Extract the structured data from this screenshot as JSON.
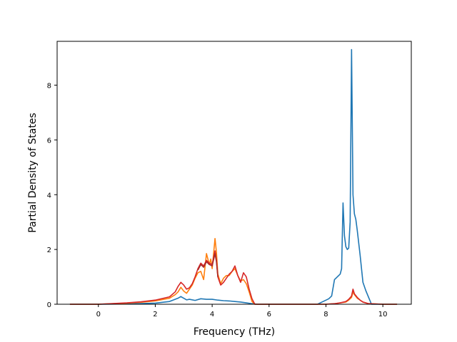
{
  "chart_data": {
    "type": "line",
    "title": "",
    "xlabel": "Frequency (THz)",
    "ylabel": "Partial Density of States",
    "xlim": [
      -1.45,
      11.0
    ],
    "ylim": [
      0,
      9.6
    ],
    "xticks": [
      0,
      2,
      4,
      6,
      8,
      10
    ],
    "yticks": [
      0,
      2,
      4,
      6,
      8
    ],
    "grid": false,
    "legend": "none",
    "series": [
      {
        "color": "#1f77b4",
        "x": [
          -1.0,
          0.0,
          1.0,
          2.0,
          2.5,
          2.8,
          2.9,
          3.0,
          3.1,
          3.2,
          3.4,
          3.6,
          3.8,
          4.0,
          4.2,
          4.4,
          4.6,
          4.8,
          5.0,
          5.2,
          5.4,
          5.6,
          6.0,
          7.0,
          7.7,
          7.9,
          8.1,
          8.2,
          8.3,
          8.4,
          8.5,
          8.55,
          8.6,
          8.65,
          8.7,
          8.75,
          8.8,
          8.85,
          8.9,
          8.95,
          9.0,
          9.05,
          9.1,
          9.2,
          9.3,
          9.4,
          9.5,
          9.6,
          10.0,
          10.5
        ],
        "y": [
          0.0,
          0.0,
          0.01,
          0.04,
          0.1,
          0.22,
          0.28,
          0.22,
          0.16,
          0.18,
          0.14,
          0.2,
          0.18,
          0.18,
          0.15,
          0.13,
          0.12,
          0.1,
          0.08,
          0.05,
          0.02,
          0.0,
          0.0,
          0.0,
          0.0,
          0.1,
          0.2,
          0.3,
          0.9,
          1.0,
          1.1,
          1.3,
          3.7,
          2.5,
          2.1,
          2.0,
          2.05,
          3.0,
          9.3,
          4.0,
          3.3,
          3.1,
          2.7,
          1.8,
          0.8,
          0.5,
          0.25,
          0.0,
          0.0,
          0.0
        ]
      },
      {
        "color": "#ff7f0e",
        "x": [
          -1.0,
          0.0,
          1.0,
          1.5,
          2.0,
          2.5,
          2.7,
          2.8,
          2.9,
          3.0,
          3.1,
          3.2,
          3.3,
          3.4,
          3.5,
          3.6,
          3.7,
          3.8,
          3.9,
          3.95,
          4.0,
          4.1,
          4.15,
          4.2,
          4.3,
          4.4,
          4.5,
          4.6,
          4.7,
          4.8,
          4.9,
          5.0,
          5.1,
          5.2,
          5.3,
          5.4,
          5.5,
          6.0,
          7.0,
          8.0,
          8.3,
          8.5,
          8.7,
          8.8,
          8.9,
          8.95,
          9.0,
          9.1,
          9.2,
          9.3,
          9.5,
          10.0,
          10.5
        ],
        "y": [
          0.0,
          0.0,
          0.04,
          0.07,
          0.12,
          0.22,
          0.35,
          0.45,
          0.62,
          0.48,
          0.4,
          0.55,
          0.7,
          0.95,
          1.15,
          1.2,
          0.9,
          1.85,
          1.45,
          1.65,
          1.3,
          2.4,
          1.9,
          1.1,
          0.75,
          0.95,
          1.05,
          1.05,
          1.2,
          1.3,
          1.05,
          0.85,
          0.9,
          0.75,
          0.45,
          0.1,
          0.0,
          0.0,
          0.0,
          0.0,
          0.02,
          0.05,
          0.08,
          0.15,
          0.25,
          0.45,
          0.35,
          0.22,
          0.15,
          0.08,
          0.02,
          0.0,
          0.0
        ]
      },
      {
        "color": "#d62728",
        "x": [
          -1.0,
          0.0,
          1.0,
          1.5,
          2.0,
          2.5,
          2.7,
          2.8,
          2.9,
          3.0,
          3.1,
          3.2,
          3.3,
          3.4,
          3.5,
          3.6,
          3.7,
          3.8,
          3.9,
          4.0,
          4.1,
          4.15,
          4.2,
          4.3,
          4.4,
          4.5,
          4.6,
          4.7,
          4.8,
          4.9,
          5.0,
          5.1,
          5.2,
          5.3,
          5.4,
          5.5,
          6.0,
          7.0,
          8.0,
          8.3,
          8.5,
          8.7,
          8.8,
          8.9,
          8.95,
          9.0,
          9.1,
          9.2,
          9.3,
          9.5,
          10.0,
          10.5
        ],
        "y": [
          0.0,
          0.0,
          0.05,
          0.09,
          0.15,
          0.27,
          0.45,
          0.65,
          0.8,
          0.7,
          0.55,
          0.6,
          0.75,
          1.0,
          1.3,
          1.5,
          1.4,
          1.6,
          1.5,
          1.45,
          1.95,
          1.6,
          1.0,
          0.7,
          0.8,
          0.95,
          1.1,
          1.2,
          1.4,
          1.05,
          0.8,
          1.15,
          1.0,
          0.55,
          0.2,
          0.0,
          0.0,
          0.0,
          0.0,
          0.02,
          0.05,
          0.1,
          0.18,
          0.3,
          0.55,
          0.38,
          0.25,
          0.15,
          0.08,
          0.02,
          0.0,
          0.0
        ]
      },
      {
        "color": "#aa2a2a",
        "x": [
          3.5,
          3.6,
          3.7,
          3.8,
          3.9,
          4.0,
          4.1,
          4.15,
          4.2
        ],
        "y": [
          1.25,
          1.45,
          1.35,
          1.55,
          1.45,
          1.4,
          1.85,
          1.55,
          1.0
        ]
      }
    ]
  }
}
